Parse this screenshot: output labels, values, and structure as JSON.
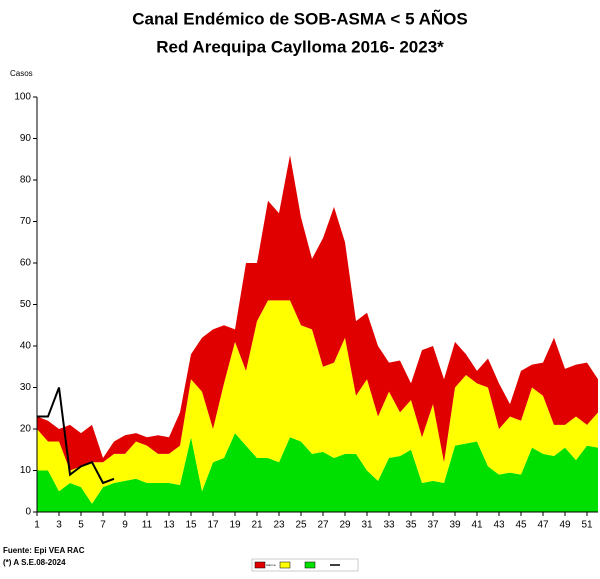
{
  "chart_data": {
    "type": "stacked-area",
    "title": [
      "Canal Endémico de SOB-ASMA < 5 AÑOS",
      "Red Arequipa Caylloma 2016- 2023*"
    ],
    "y_label": "Casos",
    "footnotes": [
      "Fuente: Epi VEA RAC",
      "(*) A S.E.08-2024"
    ],
    "x": [
      1,
      2,
      3,
      4,
      5,
      6,
      7,
      8,
      9,
      10,
      11,
      12,
      13,
      14,
      15,
      16,
      17,
      18,
      19,
      20,
      21,
      22,
      23,
      24,
      25,
      26,
      27,
      28,
      29,
      30,
      31,
      32,
      33,
      34,
      35,
      36,
      37,
      38,
      39,
      40,
      41,
      42,
      43,
      44,
      45,
      46,
      47,
      48,
      49,
      50,
      51,
      52
    ],
    "xlim": [
      1,
      52
    ],
    "xticks": [
      1,
      3,
      5,
      7,
      9,
      11,
      13,
      15,
      17,
      19,
      21,
      23,
      25,
      27,
      29,
      31,
      33,
      35,
      37,
      39,
      41,
      43,
      45,
      47,
      49,
      51
    ],
    "ylim": [
      0,
      100
    ],
    "yticks": [
      0,
      10,
      20,
      30,
      40,
      50,
      60,
      70,
      80,
      90,
      100
    ],
    "series": [
      {
        "color": "#00e000",
        "values": [
          10,
          10,
          5,
          7,
          6,
          2,
          6,
          7,
          7.5,
          8,
          7,
          7,
          7,
          6.5,
          18,
          5,
          12,
          13,
          19,
          16,
          13,
          13,
          12,
          18,
          17,
          14,
          14.5,
          13,
          14,
          14,
          10,
          7.5,
          13,
          13.5,
          15,
          7,
          7.5,
          7,
          16,
          16.5,
          17,
          11,
          9,
          9.5,
          9,
          15.5,
          14,
          13.5,
          15.5,
          12.5,
          16,
          15.5
        ]
      },
      {
        "color": "#ffff00",
        "values": [
          10,
          7,
          12,
          3,
          5,
          10,
          6,
          7,
          6.5,
          9,
          9,
          7,
          7,
          9.5,
          14,
          24,
          8,
          18,
          22,
          18,
          33,
          38,
          39,
          33,
          28,
          30,
          20.5,
          23,
          28,
          14,
          22,
          15.5,
          16,
          10.5,
          12,
          11,
          18.5,
          5,
          14,
          16.5,
          14,
          19,
          11,
          13.5,
          13,
          14.5,
          14,
          7.5,
          5.5,
          10.5,
          5,
          8.5
        ]
      },
      {
        "name": "Alarma",
        "color": "#e00000",
        "values": [
          3,
          5,
          3,
          11,
          8,
          9,
          1,
          3,
          4.5,
          2,
          2,
          4.5,
          4,
          8,
          6,
          13,
          24,
          14,
          3,
          26,
          14,
          24,
          21,
          35,
          26,
          17,
          31,
          37.5,
          23,
          18,
          16,
          17,
          7,
          12.5,
          4,
          21,
          14,
          20,
          11,
          5,
          3,
          7,
          11,
          3,
          12,
          5.5,
          8,
          21,
          13.5,
          12.5,
          15,
          8
        ]
      },
      {
        "color": "#000000",
        "kind": "line",
        "values": [
          23,
          23,
          30,
          9,
          11,
          12,
          7,
          8,
          null,
          null,
          null,
          null,
          null,
          null,
          null,
          null,
          null,
          null,
          null,
          null,
          null,
          null,
          null,
          null,
          null,
          null,
          null,
          null,
          null,
          null,
          null,
          null,
          null,
          null,
          null,
          null,
          null,
          null,
          null,
          null,
          null,
          null,
          null,
          null,
          null,
          null,
          null,
          null,
          null,
          null,
          null,
          null
        ]
      }
    ]
  }
}
